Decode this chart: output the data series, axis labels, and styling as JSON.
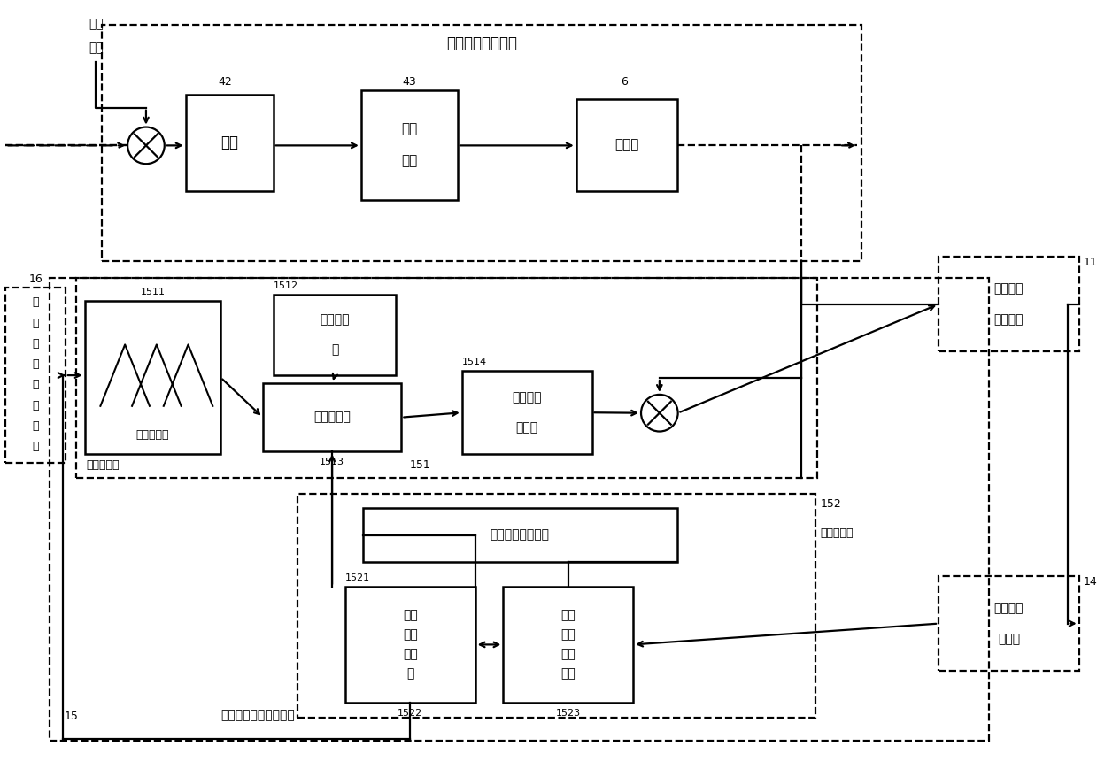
{
  "bg": "#ffffff",
  "top_label": "待逼近非线性系统",
  "node42": "电机",
  "node43_1": "传动",
  "node43_2": "装置",
  "node6": "机械臂",
  "rand1": "随机",
  "rand2": "扰动",
  "n42": "42",
  "n43": "43",
  "n6": "6",
  "n16": "16",
  "ctrl_chars": [
    "控",
    "制",
    "器",
    "变",
    "量",
    "存",
    "储",
    "器"
  ],
  "n1511": "1511",
  "n1512": "1512",
  "n1513": "1513",
  "n1514": "1514",
  "n151": "151",
  "n152": "152",
  "n1521": "1521",
  "n1522": "1522",
  "n1523": "1523",
  "n15": "15",
  "n11": "11",
  "n14": "14",
  "fuzz_approx": "模糊逼近器",
  "fuzz_rules_1": "模糊规则",
  "fuzz_rules_2": "库",
  "product_infer": "乘积推理机",
  "center_avg_1": "中心平均",
  "center_avg_2": "解模器",
  "singleton_fuzz": "单值模糊器",
  "param_init": "参数初始值存储器",
  "adapt_law_1": "自适",
  "adapt_law_2": "应律",
  "adapt_law_3": "存储",
  "adapt_law_4": "器",
  "param_adj_1": "参数",
  "param_adj_2": "调整",
  "param_adj_3": "值存",
  "param_adj_4": "储器",
  "adapt_module": "自适应模块",
  "ctrl_sig_1": "控制信号",
  "ctrl_sig_2": "发生单元",
  "comp_unit_1": "计算机运",
  "comp_unit_2": "算单元",
  "mech_approx": "机械臂动态模糊逼近器"
}
